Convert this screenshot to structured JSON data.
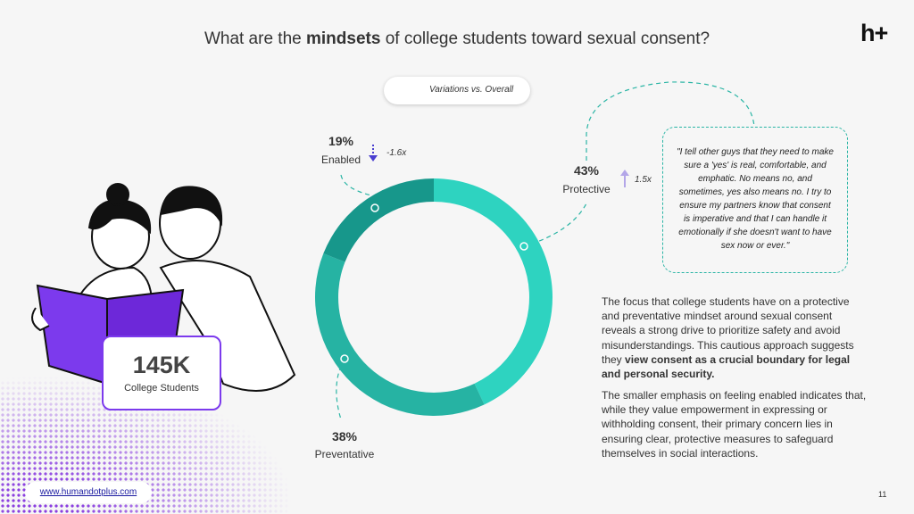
{
  "header": {
    "title_parts": [
      "What are the ",
      "mindsets",
      " of college students toward sexual consent?"
    ],
    "logo": "h+"
  },
  "legend": {
    "text": "Variations vs. Overall"
  },
  "chart_data": {
    "type": "donut",
    "categories": [
      "Protective",
      "Preventative",
      "Enabled"
    ],
    "values": [
      43,
      38,
      19
    ],
    "value_labels": [
      "43%",
      "38%",
      "19%"
    ],
    "colors": [
      "#2ed3c0",
      "#26b3a3",
      "#17978b"
    ],
    "variation_labels": [
      "1.5x",
      null,
      "-1.6x"
    ]
  },
  "quote": "\"I tell other guys that they need to make sure a 'yes' is real, comfortable, and emphatic. No means no, and sometimes, yes also means no. I try to ensure my partners know that consent is imperative and that I can handle it emotionally if she doesn't want to have sex now or ever.\"",
  "stat": {
    "value": "145K",
    "label": "College Students"
  },
  "body": {
    "paragraph_1": [
      "The focus that college students have on a protective and preventative mindset around sexual consent reveals a strong drive to prioritize safety and avoid misunderstandings. This cautious approach suggests they ",
      "view consent as a crucial boundary for legal and personal security."
    ],
    "paragraph_2": "The smaller emphasis on feeling enabled indicates that, while they value empowerment in expressing or withholding consent, their primary concern lies in ensuring clear, protective measures to safeguard themselves in social interactions."
  },
  "footer": {
    "link": "www.humandotplus.com",
    "page_number": "11"
  }
}
